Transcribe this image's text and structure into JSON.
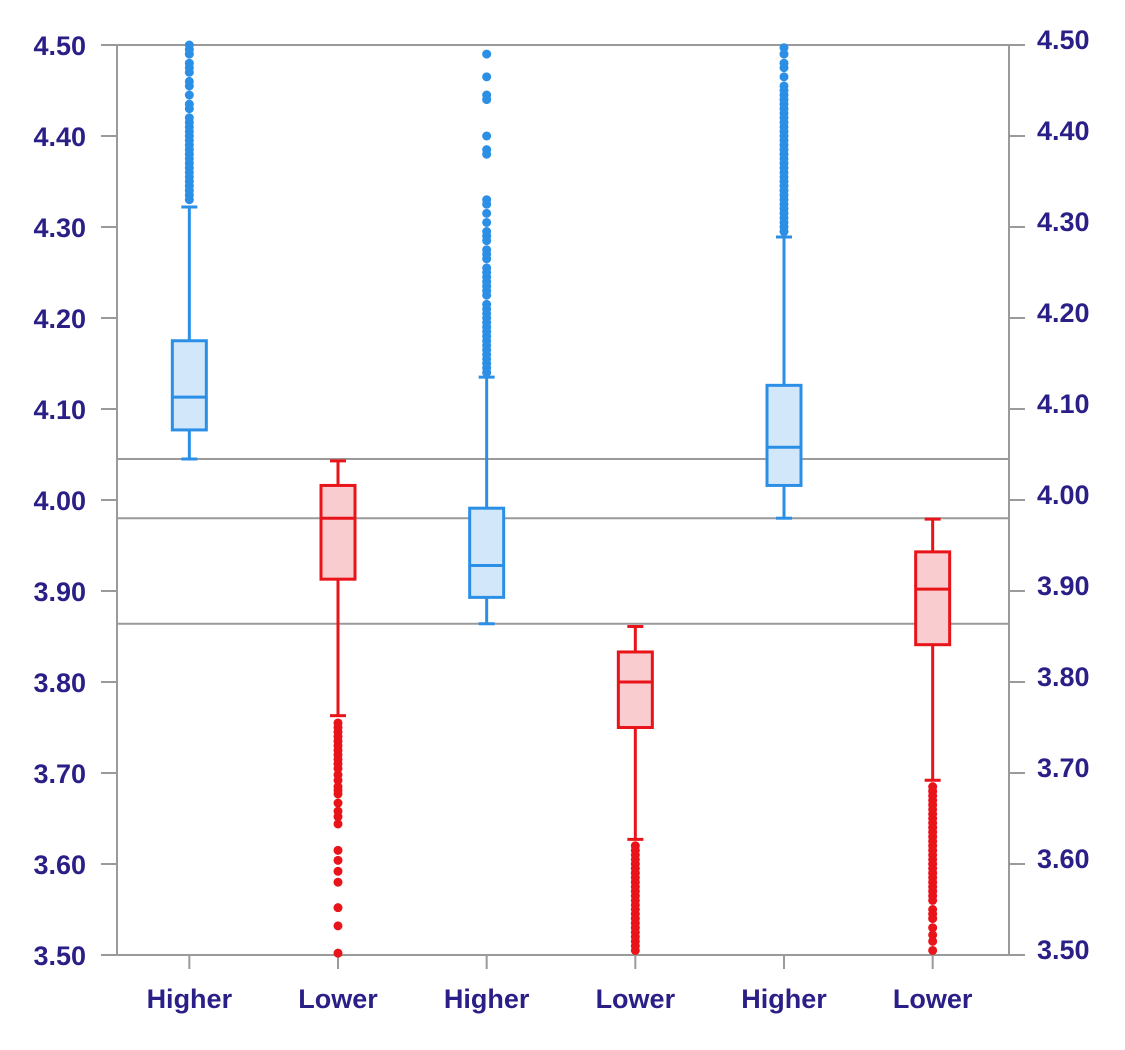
{
  "chart_data": {
    "type": "box",
    "categories": [
      "Higher",
      "Lower",
      "Higher",
      "Lower",
      "Higher",
      "Lower"
    ],
    "ylim": [
      3.5,
      4.5
    ],
    "yticks": [
      "3.50",
      "3.60",
      "3.70",
      "3.80",
      "3.90",
      "4.00",
      "4.10",
      "4.20",
      "4.30",
      "4.40",
      "4.50"
    ],
    "ylabel": "",
    "xlabel": "",
    "grid": false,
    "secondary_y_axis": true,
    "reference_lines": [
      4.045,
      3.98,
      3.864
    ],
    "colors": {
      "Higher": {
        "stroke": "#2b8fe6",
        "fill": "#d3e7fb"
      },
      "Lower": {
        "stroke": "#e8141a",
        "fill": "#f9cdd0"
      },
      "axis": "#9a9a9a",
      "text": "#2a1f86"
    },
    "boxes": [
      {
        "category": "Higher",
        "min": 4.045,
        "q1": 4.077,
        "median": 4.113,
        "q3": 4.175,
        "whisker_high": 4.322,
        "outliers": [
          4.33,
          4.335,
          4.34,
          4.345,
          4.35,
          4.355,
          4.36,
          4.365,
          4.37,
          4.375,
          4.38,
          4.385,
          4.39,
          4.395,
          4.4,
          4.405,
          4.41,
          4.415,
          4.42,
          4.43,
          4.435,
          4.445,
          4.455,
          4.46,
          4.47,
          4.475,
          4.48,
          4.49,
          4.495,
          4.5
        ]
      },
      {
        "category": "Lower",
        "min": 3.5,
        "whisker_low": 3.763,
        "q1": 3.913,
        "median": 3.98,
        "q3": 4.016,
        "max": 4.043,
        "outliers": [
          3.502,
          3.532,
          3.552,
          3.58,
          3.592,
          3.604,
          3.615,
          3.644,
          3.652,
          3.658,
          3.667,
          3.677,
          3.681,
          3.685,
          3.692,
          3.698,
          3.705,
          3.71,
          3.715,
          3.72,
          3.725,
          3.73,
          3.735,
          3.74,
          3.745,
          3.75,
          3.755
        ]
      },
      {
        "category": "Higher",
        "min": 3.864,
        "q1": 3.893,
        "median": 3.928,
        "q3": 3.991,
        "whisker_high": 4.135,
        "outliers": [
          4.14,
          4.145,
          4.15,
          4.155,
          4.16,
          4.165,
          4.17,
          4.175,
          4.18,
          4.185,
          4.19,
          4.195,
          4.2,
          4.205,
          4.21,
          4.215,
          4.225,
          4.23,
          4.235,
          4.24,
          4.245,
          4.25,
          4.255,
          4.265,
          4.27,
          4.275,
          4.285,
          4.29,
          4.295,
          4.305,
          4.315,
          4.325,
          4.33,
          4.38,
          4.385,
          4.4,
          4.44,
          4.445,
          4.465,
          4.49
        ]
      },
      {
        "category": "Lower",
        "min": 3.5,
        "whisker_low": 3.627,
        "q1": 3.75,
        "median": 3.8,
        "q3": 3.833,
        "max": 3.861,
        "outliers": [
          3.505,
          3.51,
          3.515,
          3.52,
          3.525,
          3.53,
          3.535,
          3.54,
          3.545,
          3.55,
          3.555,
          3.56,
          3.565,
          3.57,
          3.575,
          3.58,
          3.585,
          3.59,
          3.595,
          3.6,
          3.605,
          3.61,
          3.615,
          3.62
        ]
      },
      {
        "category": "Higher",
        "min": 3.98,
        "q1": 4.016,
        "median": 4.058,
        "q3": 4.126,
        "whisker_high": 4.289,
        "outliers": [
          4.295,
          4.3,
          4.305,
          4.31,
          4.315,
          4.32,
          4.325,
          4.33,
          4.335,
          4.34,
          4.345,
          4.35,
          4.355,
          4.36,
          4.365,
          4.37,
          4.375,
          4.38,
          4.385,
          4.39,
          4.395,
          4.4,
          4.405,
          4.41,
          4.415,
          4.42,
          4.425,
          4.43,
          4.435,
          4.44,
          4.445,
          4.45,
          4.455,
          4.465,
          4.475,
          4.48,
          4.49,
          4.497
        ]
      },
      {
        "category": "Lower",
        "min": 3.5,
        "whisker_low": 3.692,
        "q1": 3.841,
        "median": 3.902,
        "q3": 3.943,
        "max": 3.979,
        "outliers": [
          3.505,
          3.515,
          3.522,
          3.53,
          3.54,
          3.545,
          3.55,
          3.56,
          3.565,
          3.57,
          3.575,
          3.58,
          3.585,
          3.59,
          3.595,
          3.6,
          3.605,
          3.61,
          3.615,
          3.62,
          3.625,
          3.63,
          3.635,
          3.64,
          3.645,
          3.65,
          3.655,
          3.66,
          3.665,
          3.67,
          3.675,
          3.68,
          3.685
        ]
      }
    ]
  }
}
